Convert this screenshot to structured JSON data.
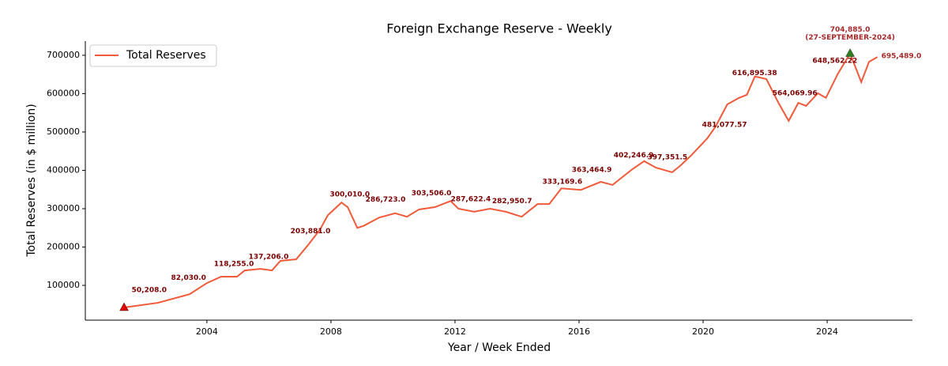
{
  "chart_data": {
    "type": "line",
    "title": "Foreign Exchange Reserve - Weekly",
    "x_label": "Year / Week Ended",
    "y_label": "Total Reserves (in $ million)",
    "xlim": [
      2000.08,
      2026.75
    ],
    "ylim": [
      9300,
      737000
    ],
    "xticks": [
      2004,
      2008,
      2012,
      2016,
      2020,
      2024
    ],
    "yticks": [
      100000,
      200000,
      300000,
      400000,
      500000,
      600000,
      700000
    ],
    "legend": "upper left",
    "series": [
      {
        "name": "Total Reserves",
        "color": "#f05a3a",
        "x": [
          2001.33,
          2001.4,
          2002.42,
          2003.44,
          2004,
          2004.46,
          2004.97,
          2005.22,
          2005.73,
          2006.1,
          2006.37,
          2006.88,
          2007.26,
          2007.65,
          2007.9,
          2008.34,
          2008.54,
          2008.85,
          2009.05,
          2009.56,
          2010.07,
          2010.45,
          2010.84,
          2011.35,
          2011.86,
          2012.11,
          2012.62,
          2013.13,
          2013.64,
          2014.15,
          2014.66,
          2015.04,
          2015.43,
          2016.06,
          2016.7,
          2017.08,
          2017.72,
          2018.1,
          2018.48,
          2019.0,
          2019.25,
          2019.63,
          2020.14,
          2020.4,
          2020.78,
          2021.16,
          2021.41,
          2021.67,
          2022.04,
          2022.43,
          2022.76,
          2023.07,
          2023.32,
          2023.7,
          2023.96,
          2024.34,
          2024.74,
          2025.1,
          2025.35,
          2025.62
        ],
        "values": [
          42300,
          43000,
          54500,
          77000,
          106000,
          122700,
          122700,
          139000,
          143000,
          139000,
          164000,
          168000,
          205000,
          246000,
          283000,
          316000,
          304000,
          250000,
          255000,
          277000,
          288000,
          279000,
          298000,
          304000,
          320000,
          300000,
          292000,
          300000,
          292000,
          279000,
          312000,
          312000,
          353000,
          349000,
          370000,
          362000,
          403000,
          424000,
          407000,
          395000,
          411000,
          440000,
          484000,
          514000,
          572000,
          589000,
          597000,
          645000,
          638000,
          576000,
          529000,
          576000,
          568000,
          601000,
          589000,
          651000,
          704885,
          630000,
          683000,
          695489
        ]
      }
    ],
    "annotations": [
      {
        "x": 2002.14,
        "value": 50208,
        "label": "50,208.0"
      },
      {
        "x": 2003.41,
        "value": 82030,
        "label": "82,030.0"
      },
      {
        "x": 2004.87,
        "value": 118255,
        "label": "118,255.0"
      },
      {
        "x": 2005.99,
        "value": 137206,
        "label": "137,206.0"
      },
      {
        "x": 2007.34,
        "value": 203881,
        "label": "203,881.0"
      },
      {
        "x": 2008.61,
        "value": 300010,
        "label": "300,010.0"
      },
      {
        "x": 2009.76,
        "value": 286723,
        "label": "286,723.0"
      },
      {
        "x": 2011.24,
        "value": 303506,
        "label": "303,506.0"
      },
      {
        "x": 2012.51,
        "value": 287622.4,
        "label": "287,622.4"
      },
      {
        "x": 2013.84,
        "value": 282950.7,
        "label": "282,950.7"
      },
      {
        "x": 2015.46,
        "value": 333169.6,
        "label": "333,169.6"
      },
      {
        "x": 2016.41,
        "value": 363464.9,
        "label": "363,464.9"
      },
      {
        "x": 2017.76,
        "value": 402246.9,
        "label": "402,246.9"
      },
      {
        "x": 2018.85,
        "value": 397351.5,
        "label": "397,351.5"
      },
      {
        "x": 2020.69,
        "value": 481077.57,
        "label": "481,077.57"
      },
      {
        "x": 2021.66,
        "value": 616895.38,
        "label": "616,895.38"
      },
      {
        "x": 2022.96,
        "value": 564069.96,
        "label": "564,069.96"
      },
      {
        "x": 2024.25,
        "value": 648562.22,
        "label": "648,562.22"
      }
    ],
    "last_label": {
      "x": 2025.62,
      "value": 695489,
      "label": "695,489.0"
    },
    "min_marker": {
      "x": 2001.33,
      "value": 42300,
      "color": "#e00000"
    },
    "max_marker": {
      "x": 2024.74,
      "value": 704885,
      "label": "704,885.0",
      "date": "(27-SEPTEMBER-2024)",
      "color": "#2e7d1e"
    }
  }
}
